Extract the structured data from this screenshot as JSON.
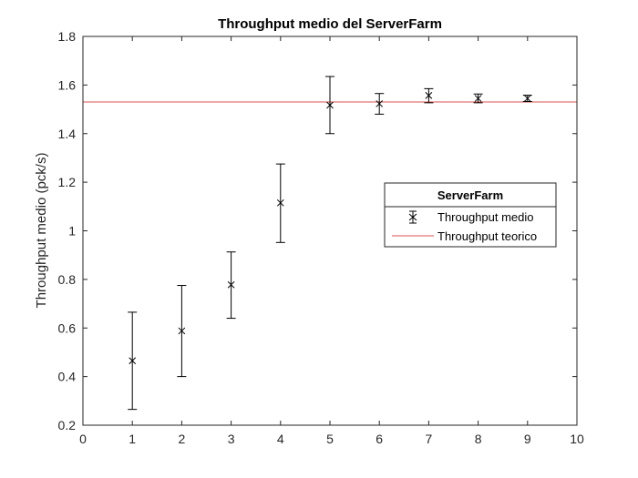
{
  "chart_data": {
    "type": "scatter",
    "title": "Throughput medio del ServerFarm",
    "xlabel": "",
    "ylabel": "Throughput medio (pck/s)",
    "xlim": [
      0,
      10
    ],
    "ylim": [
      0.2,
      1.8
    ],
    "xticks": [
      0,
      1,
      2,
      3,
      4,
      5,
      6,
      7,
      8,
      9,
      10
    ],
    "yticks": [
      0.2,
      0.4,
      0.6,
      0.8,
      1.0,
      1.2,
      1.4,
      1.6,
      1.8
    ],
    "xtick_labels": [
      "0",
      "1",
      "2",
      "3",
      "4",
      "5",
      "6",
      "7",
      "8",
      "9",
      "10"
    ],
    "ytick_labels": [
      "0.2",
      "0.4",
      "0.6",
      "0.8",
      "1",
      "1.2",
      "1.4",
      "1.6",
      "1.8"
    ],
    "grid": false,
    "legend": {
      "title": "ServerFarm",
      "placement": "right",
      "entries": [
        "Throughput medio",
        "Throughput teorico"
      ]
    },
    "series": [
      {
        "name": "Throughput medio",
        "type": "errorbar",
        "marker": "x",
        "color": "#000000",
        "x": [
          1,
          2,
          3,
          4,
          5,
          6,
          7,
          8,
          9
        ],
        "y": [
          0.465,
          0.588,
          0.778,
          1.115,
          1.517,
          1.523,
          1.557,
          1.545,
          1.545
        ],
        "err_low": [
          0.265,
          0.4,
          0.64,
          0.952,
          1.4,
          1.48,
          1.527,
          1.527,
          1.532
        ],
        "err_high": [
          0.665,
          0.775,
          0.913,
          1.275,
          1.635,
          1.565,
          1.585,
          1.563,
          1.558
        ]
      },
      {
        "name": "Throughput teorico",
        "type": "hline",
        "color": "#d9534f",
        "y": 1.53
      }
    ]
  }
}
